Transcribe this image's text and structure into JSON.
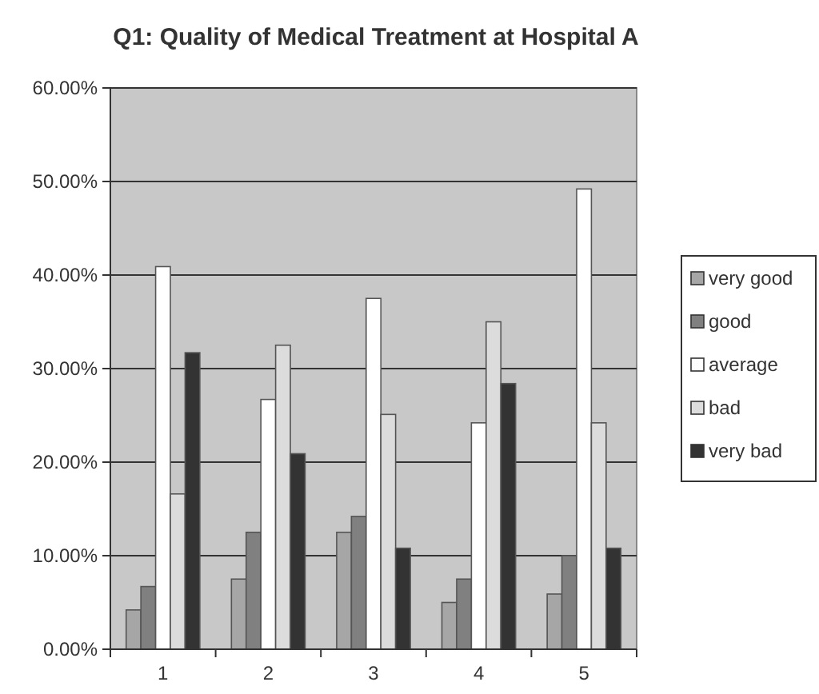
{
  "chart_data": {
    "type": "bar",
    "title": "Q1: Quality of Medical Treatment at Hospital A",
    "categories": [
      "1",
      "2",
      "3",
      "4",
      "5"
    ],
    "series": [
      {
        "name": "very good",
        "color": "#a6a6a6",
        "values": [
          4.2,
          7.5,
          12.5,
          5.0,
          5.9
        ]
      },
      {
        "name": "good",
        "color": "#808080",
        "values": [
          6.7,
          12.5,
          14.2,
          7.5,
          10.0
        ]
      },
      {
        "name": "average",
        "color": "#ffffff",
        "values": [
          40.9,
          26.7,
          37.5,
          24.2,
          49.2
        ]
      },
      {
        "name": "bad",
        "color": "#dcdcdc",
        "values": [
          16.6,
          32.5,
          25.1,
          35.0,
          24.2
        ]
      },
      {
        "name": "very bad",
        "color": "#333333",
        "values": [
          31.7,
          20.9,
          10.8,
          28.4,
          10.8
        ]
      }
    ],
    "ylim": [
      0,
      60
    ],
    "yticks": [
      {
        "value": 0,
        "label": "0.00%"
      },
      {
        "value": 10,
        "label": "10.00%"
      },
      {
        "value": 20,
        "label": "20.00%"
      },
      {
        "value": 30,
        "label": "30.00%"
      },
      {
        "value": 40,
        "label": "40.00%"
      },
      {
        "value": 50,
        "label": "50.00%"
      },
      {
        "value": 60,
        "label": "60.00%"
      }
    ],
    "grid": "y",
    "legend": "right"
  }
}
